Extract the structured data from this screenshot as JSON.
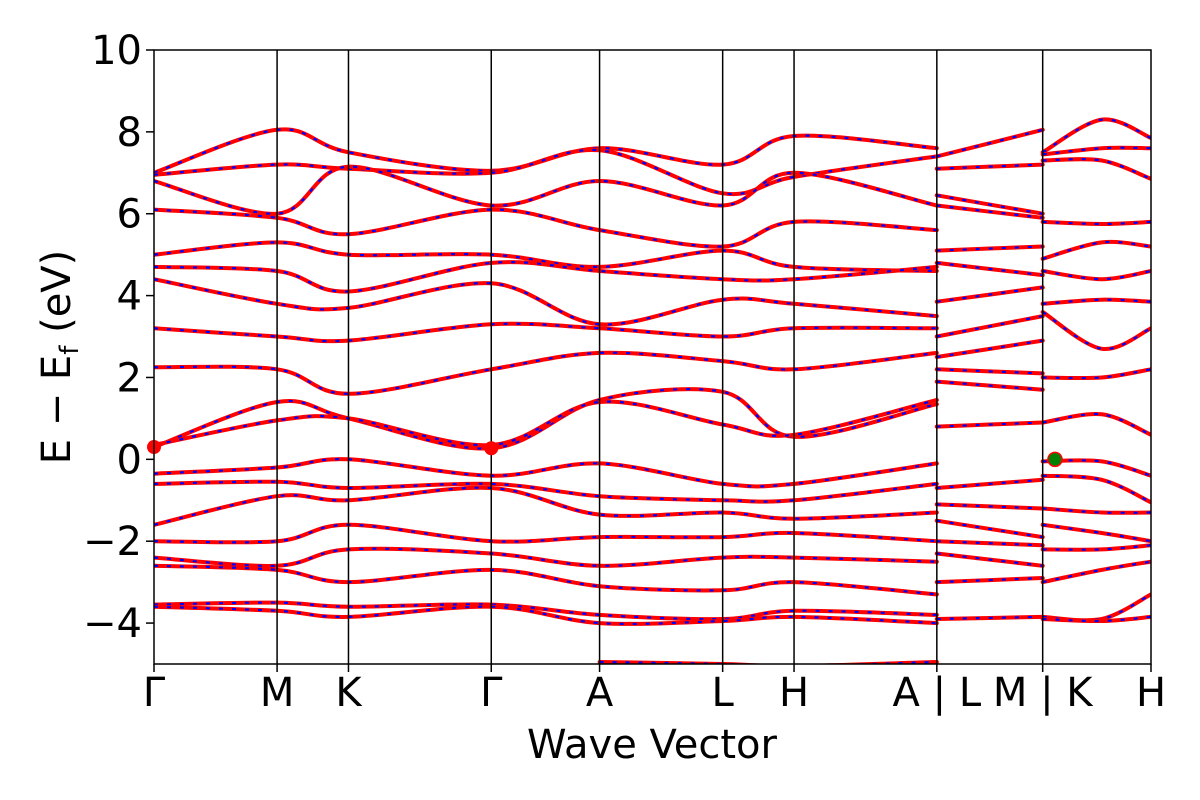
{
  "chart_data": {
    "type": "line",
    "title": "",
    "xlabel": "Wave Vector",
    "ylabel": "E − E",
    "ylabel_sub": "f",
    "ylabel_unit": " (eV)",
    "ylim": [
      -5,
      10
    ],
    "yticks": [
      -4,
      -2,
      0,
      2,
      4,
      6,
      8,
      10
    ],
    "ytick_labels": [
      "−4",
      "−2",
      "0",
      "2",
      "4",
      "6",
      "8",
      "10"
    ],
    "kpath": [
      {
        "label": "Γ",
        "x": 0.0
      },
      {
        "label": "M",
        "x": 0.5
      },
      {
        "label": "K",
        "x": 0.79
      },
      {
        "label": "Γ",
        "x": 1.37
      },
      {
        "label": "A",
        "x": 1.81
      },
      {
        "label": "L",
        "x": 2.31
      },
      {
        "label": "H",
        "x": 2.6
      },
      {
        "label": "A | L",
        "x": 3.18
      },
      {
        "label": "M | K",
        "x": 3.61
      },
      {
        "label": "H",
        "x": 4.05
      }
    ],
    "extra_vertical_lines": [
      3.18,
      3.61
    ],
    "xlim": [
      0.0,
      4.05
    ],
    "grid": false,
    "colors": {
      "bands": "#ff0000",
      "overlay": "#0000ff",
      "cbm_marker": "#ff0000",
      "vbm_marker": "#008000"
    },
    "markers": [
      {
        "name": "cbm",
        "x": 0.0,
        "y": 0.3
      },
      {
        "name": "cbm",
        "x": 1.37,
        "y": 0.27
      },
      {
        "name": "vbm",
        "x": 3.66,
        "y": 0.0
      }
    ],
    "series": [
      {
        "values": [
          [
            0,
            7.0
          ],
          [
            0.5,
            8.05
          ],
          [
            0.79,
            7.5
          ],
          [
            1.37,
            7.05
          ],
          [
            1.81,
            7.6
          ],
          [
            2.31,
            7.2
          ],
          [
            2.6,
            7.9
          ],
          [
            3.18,
            7.6
          ]
        ]
      },
      {
        "values": [
          [
            0,
            6.95
          ],
          [
            0.5,
            7.2
          ],
          [
            0.79,
            7.1
          ],
          [
            1.37,
            7.0
          ],
          [
            1.81,
            7.55
          ],
          [
            2.31,
            6.5
          ],
          [
            2.6,
            6.9
          ],
          [
            3.18,
            7.4
          ]
        ]
      },
      {
        "values": [
          [
            0,
            6.8
          ],
          [
            0.5,
            6.0
          ],
          [
            0.79,
            7.15
          ],
          [
            1.37,
            6.2
          ],
          [
            1.81,
            6.8
          ],
          [
            2.31,
            6.2
          ],
          [
            2.6,
            7.0
          ],
          [
            3.18,
            6.2
          ]
        ]
      },
      {
        "values": [
          [
            0,
            6.1
          ],
          [
            0.5,
            5.9
          ],
          [
            0.79,
            5.5
          ],
          [
            1.37,
            6.1
          ],
          [
            1.81,
            5.6
          ],
          [
            2.31,
            5.2
          ],
          [
            2.6,
            5.8
          ],
          [
            3.18,
            5.6
          ]
        ]
      },
      {
        "values": [
          [
            0,
            5.0
          ],
          [
            0.5,
            5.3
          ],
          [
            0.79,
            5.0
          ],
          [
            1.37,
            5.0
          ],
          [
            1.81,
            4.7
          ],
          [
            2.31,
            5.1
          ],
          [
            2.6,
            4.7
          ],
          [
            3.18,
            4.6
          ]
        ]
      },
      {
        "values": [
          [
            0,
            4.7
          ],
          [
            0.5,
            4.6
          ],
          [
            0.79,
            4.1
          ],
          [
            1.37,
            4.8
          ],
          [
            1.81,
            4.6
          ],
          [
            2.31,
            4.4
          ],
          [
            2.6,
            4.4
          ],
          [
            3.18,
            4.7
          ]
        ]
      },
      {
        "values": [
          [
            0,
            4.4
          ],
          [
            0.5,
            3.8
          ],
          [
            0.79,
            3.7
          ],
          [
            1.37,
            4.3
          ],
          [
            1.81,
            3.3
          ],
          [
            2.31,
            3.9
          ],
          [
            2.6,
            3.8
          ],
          [
            3.18,
            3.5
          ]
        ]
      },
      {
        "values": [
          [
            0,
            3.2
          ],
          [
            0.5,
            3.0
          ],
          [
            0.79,
            2.9
          ],
          [
            1.37,
            3.3
          ],
          [
            1.81,
            3.2
          ],
          [
            2.31,
            3.0
          ],
          [
            2.6,
            3.2
          ],
          [
            3.18,
            3.2
          ]
        ]
      },
      {
        "values": [
          [
            0,
            2.25
          ],
          [
            0.5,
            2.2
          ],
          [
            0.79,
            1.6
          ],
          [
            1.37,
            2.2
          ],
          [
            1.81,
            2.6
          ],
          [
            2.31,
            2.4
          ],
          [
            2.6,
            2.2
          ],
          [
            3.18,
            2.6
          ]
        ]
      },
      {
        "values": [
          [
            0,
            0.3
          ],
          [
            0.5,
            1.4
          ],
          [
            0.79,
            1.0
          ],
          [
            1.37,
            0.27
          ],
          [
            1.81,
            1.45
          ],
          [
            2.31,
            1.65
          ],
          [
            2.6,
            0.55
          ],
          [
            3.18,
            1.35
          ]
        ]
      },
      {
        "values": [
          [
            0,
            0.35
          ],
          [
            0.5,
            0.95
          ],
          [
            0.79,
            1.0
          ],
          [
            1.37,
            0.35
          ],
          [
            1.81,
            1.4
          ],
          [
            2.31,
            0.85
          ],
          [
            2.6,
            0.6
          ],
          [
            3.18,
            1.45
          ]
        ]
      },
      {
        "values": [
          [
            0,
            -0.35
          ],
          [
            0.5,
            -0.2
          ],
          [
            0.79,
            0.0
          ],
          [
            1.37,
            -0.4
          ],
          [
            1.81,
            -0.1
          ],
          [
            2.31,
            -0.6
          ],
          [
            2.6,
            -0.6
          ],
          [
            3.18,
            -0.1
          ]
        ]
      },
      {
        "values": [
          [
            0,
            -0.6
          ],
          [
            0.5,
            -0.55
          ],
          [
            0.79,
            -0.7
          ],
          [
            1.37,
            -0.6
          ],
          [
            1.81,
            -0.9
          ],
          [
            2.31,
            -1.0
          ],
          [
            2.6,
            -1.0
          ],
          [
            3.18,
            -0.6
          ]
        ]
      },
      {
        "values": [
          [
            0,
            -1.6
          ],
          [
            0.5,
            -0.9
          ],
          [
            0.79,
            -1.0
          ],
          [
            1.37,
            -0.7
          ],
          [
            1.81,
            -1.35
          ],
          [
            2.31,
            -1.3
          ],
          [
            2.6,
            -1.45
          ],
          [
            3.18,
            -1.3
          ]
        ]
      },
      {
        "values": [
          [
            0,
            -2.0
          ],
          [
            0.5,
            -2.0
          ],
          [
            0.79,
            -1.6
          ],
          [
            1.37,
            -2.0
          ],
          [
            1.81,
            -1.9
          ],
          [
            2.31,
            -1.9
          ],
          [
            2.6,
            -1.8
          ],
          [
            3.18,
            -2.0
          ]
        ]
      },
      {
        "values": [
          [
            0,
            -2.4
          ],
          [
            0.5,
            -2.6
          ],
          [
            0.79,
            -2.2
          ],
          [
            1.37,
            -2.3
          ],
          [
            1.81,
            -2.6
          ],
          [
            2.31,
            -2.4
          ],
          [
            2.6,
            -2.4
          ],
          [
            3.18,
            -2.5
          ]
        ]
      },
      {
        "values": [
          [
            0,
            -2.6
          ],
          [
            0.5,
            -2.7
          ],
          [
            0.79,
            -3.0
          ],
          [
            1.37,
            -2.7
          ],
          [
            1.81,
            -3.1
          ],
          [
            2.31,
            -3.2
          ],
          [
            2.6,
            -3.0
          ],
          [
            3.18,
            -3.3
          ]
        ]
      },
      {
        "values": [
          [
            0,
            -3.55
          ],
          [
            0.5,
            -3.5
          ],
          [
            0.79,
            -3.6
          ],
          [
            1.37,
            -3.55
          ],
          [
            1.81,
            -3.8
          ],
          [
            2.31,
            -3.9
          ],
          [
            2.6,
            -3.7
          ],
          [
            3.18,
            -3.8
          ]
        ]
      },
      {
        "values": [
          [
            0,
            -3.6
          ],
          [
            0.5,
            -3.7
          ],
          [
            0.79,
            -3.85
          ],
          [
            1.37,
            -3.6
          ],
          [
            1.81,
            -4.0
          ],
          [
            2.31,
            -3.95
          ],
          [
            2.6,
            -3.85
          ],
          [
            3.18,
            -4.0
          ]
        ]
      },
      {
        "values": [
          [
            1.81,
            -4.95
          ],
          [
            2.31,
            -5.0
          ],
          [
            2.6,
            -5.05
          ],
          [
            3.18,
            -4.95
          ]
        ]
      },
      {
        "values": [
          [
            3.18,
            7.4
          ],
          [
            3.61,
            8.05
          ]
        ]
      },
      {
        "values": [
          [
            3.18,
            7.1
          ],
          [
            3.61,
            7.2
          ]
        ]
      },
      {
        "values": [
          [
            3.18,
            6.45
          ],
          [
            3.61,
            6.0
          ]
        ]
      },
      {
        "values": [
          [
            3.18,
            6.2
          ],
          [
            3.61,
            5.9
          ]
        ]
      },
      {
        "values": [
          [
            3.18,
            5.1
          ],
          [
            3.61,
            5.2
          ]
        ]
      },
      {
        "values": [
          [
            3.18,
            4.8
          ],
          [
            3.61,
            4.5
          ]
        ]
      },
      {
        "values": [
          [
            3.18,
            3.85
          ],
          [
            3.61,
            4.2
          ]
        ]
      },
      {
        "values": [
          [
            3.18,
            3.0
          ],
          [
            3.61,
            3.5
          ]
        ]
      },
      {
        "values": [
          [
            3.18,
            2.5
          ],
          [
            3.61,
            2.9
          ]
        ]
      },
      {
        "values": [
          [
            3.18,
            2.2
          ],
          [
            3.61,
            2.1
          ]
        ]
      },
      {
        "values": [
          [
            3.18,
            1.9
          ],
          [
            3.61,
            1.7
          ]
        ]
      },
      {
        "values": [
          [
            3.18,
            0.8
          ],
          [
            3.61,
            0.9
          ]
        ]
      },
      {
        "values": [
          [
            3.18,
            -0.7
          ],
          [
            3.61,
            -0.5
          ]
        ]
      },
      {
        "values": [
          [
            3.18,
            -1.1
          ],
          [
            3.61,
            -1.2
          ]
        ]
      },
      {
        "values": [
          [
            3.18,
            -1.5
          ],
          [
            3.61,
            -1.9
          ]
        ]
      },
      {
        "values": [
          [
            3.18,
            -2.0
          ],
          [
            3.61,
            -2.1
          ]
        ]
      },
      {
        "values": [
          [
            3.18,
            -2.3
          ],
          [
            3.61,
            -2.6
          ]
        ]
      },
      {
        "values": [
          [
            3.18,
            -3.0
          ],
          [
            3.61,
            -2.9
          ]
        ]
      },
      {
        "values": [
          [
            3.18,
            -3.9
          ],
          [
            3.61,
            -3.85
          ]
        ]
      },
      {
        "values": [
          [
            3.61,
            7.5
          ],
          [
            3.85,
            8.3
          ],
          [
            4.05,
            7.85
          ]
        ]
      },
      {
        "values": [
          [
            3.61,
            7.45
          ],
          [
            3.85,
            7.6
          ],
          [
            4.05,
            7.6
          ]
        ]
      },
      {
        "values": [
          [
            3.61,
            7.3
          ],
          [
            3.85,
            7.3
          ],
          [
            4.05,
            6.85
          ]
        ]
      },
      {
        "values": [
          [
            3.61,
            5.8
          ],
          [
            3.85,
            5.75
          ],
          [
            4.05,
            5.8
          ]
        ]
      },
      {
        "values": [
          [
            3.61,
            4.9
          ],
          [
            3.85,
            5.3
          ],
          [
            4.05,
            5.2
          ]
        ]
      },
      {
        "values": [
          [
            3.61,
            4.6
          ],
          [
            3.85,
            4.4
          ],
          [
            4.05,
            4.6
          ]
        ]
      },
      {
        "values": [
          [
            3.61,
            3.8
          ],
          [
            3.85,
            3.9
          ],
          [
            4.05,
            3.85
          ]
        ]
      },
      {
        "values": [
          [
            3.61,
            3.6
          ],
          [
            3.85,
            2.7
          ],
          [
            4.05,
            3.2
          ]
        ]
      },
      {
        "values": [
          [
            3.61,
            2.0
          ],
          [
            3.85,
            2.0
          ],
          [
            4.05,
            2.2
          ]
        ]
      },
      {
        "values": [
          [
            3.61,
            0.9
          ],
          [
            3.85,
            1.1
          ],
          [
            4.05,
            0.6
          ]
        ]
      },
      {
        "values": [
          [
            3.61,
            -0.05
          ],
          [
            3.85,
            -0.05
          ],
          [
            4.05,
            -0.4
          ]
        ]
      },
      {
        "values": [
          [
            3.61,
            -0.4
          ],
          [
            3.85,
            -0.5
          ],
          [
            4.05,
            -1.05
          ]
        ]
      },
      {
        "values": [
          [
            3.61,
            -1.2
          ],
          [
            3.85,
            -1.3
          ],
          [
            4.05,
            -1.3
          ]
        ]
      },
      {
        "values": [
          [
            3.61,
            -1.6
          ],
          [
            3.85,
            -1.8
          ],
          [
            4.05,
            -2.0
          ]
        ]
      },
      {
        "values": [
          [
            3.61,
            -2.2
          ],
          [
            3.85,
            -2.2
          ],
          [
            4.05,
            -2.1
          ]
        ]
      },
      {
        "values": [
          [
            3.61,
            -3.0
          ],
          [
            3.85,
            -2.7
          ],
          [
            4.05,
            -2.5
          ]
        ]
      },
      {
        "values": [
          [
            3.61,
            -3.85
          ],
          [
            3.85,
            -3.9
          ],
          [
            4.05,
            -3.3
          ]
        ]
      },
      {
        "values": [
          [
            3.61,
            -3.9
          ],
          [
            3.85,
            -3.95
          ],
          [
            4.05,
            -3.85
          ]
        ]
      }
    ]
  }
}
